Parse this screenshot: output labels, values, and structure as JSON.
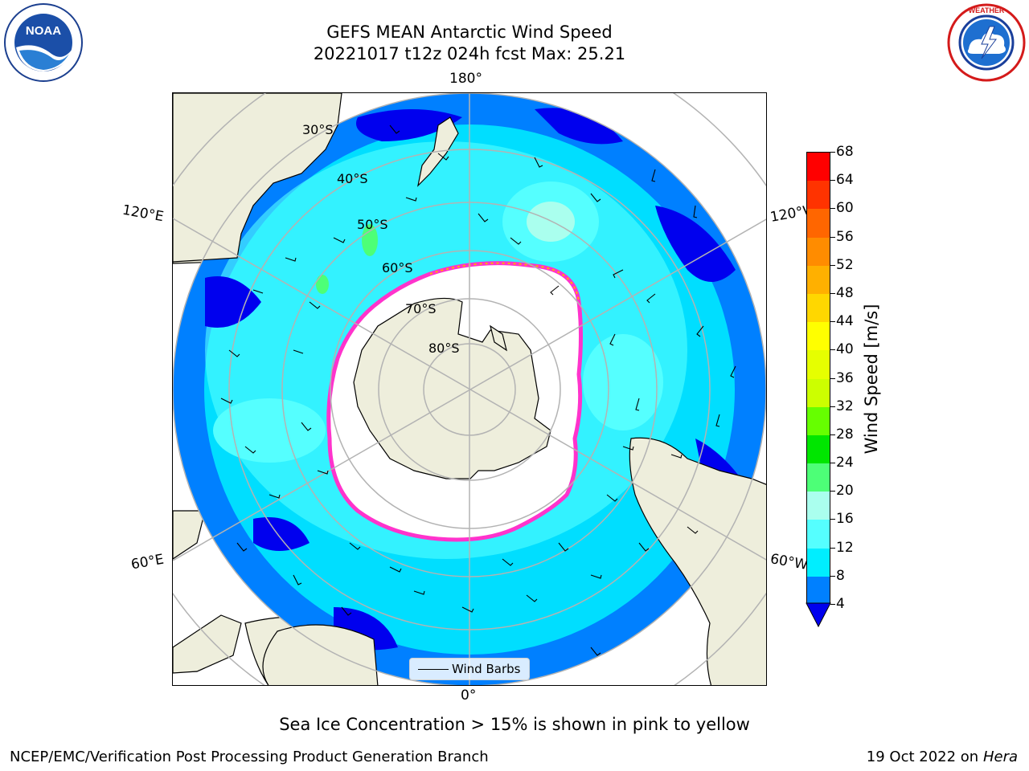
{
  "header": {
    "title_line1": "GEFS MEAN Antarctic Wind Speed",
    "title_line2": "20221017 t12z 024h fcst   Max: 25.21"
  },
  "logos": {
    "left": "noara-logo",
    "right": "national-weather-service-logo"
  },
  "map": {
    "longitude_labels": {
      "top": "180°",
      "bottom": "0°",
      "upper_left": "120°E",
      "upper_right": "120°W",
      "lower_left": "60°E",
      "lower_right": "60°W"
    },
    "latitude_labels": [
      "30°S",
      "40°S",
      "50°S",
      "60°S",
      "70°S",
      "80°S"
    ],
    "legend_label": "Wind Barbs",
    "colors": {
      "land": "#eeeedc",
      "grid": "#b3b3b3",
      "sea_ice": "#ff33cc"
    }
  },
  "colorbar": {
    "label": "Wind Speed [m/s]",
    "ticks": [
      "68",
      "64",
      "60",
      "56",
      "52",
      "48",
      "44",
      "40",
      "36",
      "32",
      "28",
      "24",
      "20",
      "16",
      "12",
      "8",
      "4"
    ],
    "colors": [
      "#ff0000",
      "#ff3300",
      "#ff6600",
      "#ff8c00",
      "#ffb000",
      "#ffd700",
      "#ffff00",
      "#e6ff00",
      "#ccff00",
      "#66ff00",
      "#00e600",
      "#4dff77",
      "#aaffee",
      "#55ffff",
      "#00eeff",
      "#0080ff",
      "#0000ee"
    ]
  },
  "footer": {
    "sea_ice_note": "Sea Ice Concentration > 15% is shown in pink to yellow",
    "left": "NCEP/EMC/Verification Post Processing Product Generation Branch",
    "right_date": "19 Oct 2022 on ",
    "right_host": "Hera"
  }
}
